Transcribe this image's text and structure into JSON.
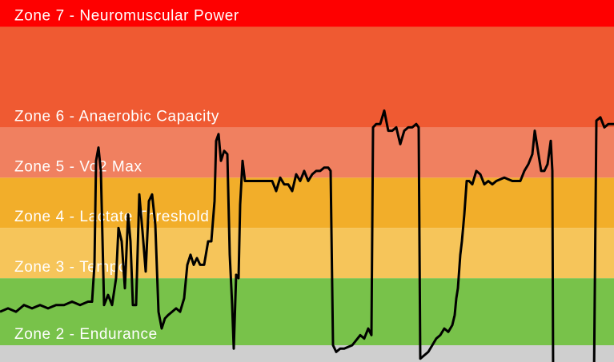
{
  "chart_data": {
    "type": "line",
    "zones": [
      {
        "name": null,
        "color": "#cfcfcf",
        "from": 50,
        "to": 55
      },
      {
        "name": "Zone 2 - Endurance",
        "color": "#78c24a",
        "from": 55,
        "to": 75
      },
      {
        "name": "Zone 3 - Tempo",
        "color": "#f6c55a",
        "from": 75,
        "to": 90
      },
      {
        "name": "Zone 4 - Lactate Threshold",
        "color": "#f2ae2a",
        "from": 90,
        "to": 105
      },
      {
        "name": "Zone 5 - Vo2 Max",
        "color": "#f08060",
        "from": 105,
        "to": 120
      },
      {
        "name": "Zone 6 - Anaerobic Capacity",
        "color": "#ef5a32",
        "from": 120,
        "to": 150
      },
      {
        "name": "Zone 7 - Neuromuscular Power",
        "color": "#fe0000",
        "from": 150,
        "to": 158
      }
    ],
    "xlim": [
      0,
      767
    ],
    "ylim": [
      50,
      158
    ],
    "color": "#000000",
    "x": [
      0,
      10,
      20,
      30,
      40,
      50,
      60,
      70,
      80,
      90,
      100,
      110,
      115,
      118,
      120,
      123,
      126,
      130,
      135,
      140,
      145,
      148,
      152,
      156,
      160,
      163,
      166,
      170,
      174,
      178,
      182,
      186,
      190,
      194,
      198,
      202,
      206,
      210,
      215,
      220,
      225,
      230,
      234,
      238,
      242,
      246,
      250,
      255,
      260,
      264,
      268,
      270,
      273,
      276,
      280,
      284,
      287,
      290,
      292,
      295,
      298,
      300,
      303,
      306,
      310,
      320,
      330,
      340,
      345,
      350,
      355,
      360,
      365,
      370,
      375,
      380,
      385,
      390,
      395,
      400,
      405,
      410,
      413,
      416,
      420,
      425,
      430,
      440,
      450,
      455,
      460,
      464,
      466,
      470,
      475,
      480,
      485,
      490,
      495,
      500,
      505,
      510,
      515,
      520,
      523,
      525,
      530,
      535,
      540,
      545,
      550,
      555,
      560,
      565,
      568,
      570,
      572,
      575,
      577,
      580,
      583,
      586,
      590,
      595,
      600,
      605,
      610,
      615,
      620,
      630,
      640,
      645,
      650,
      655,
      660,
      665,
      668,
      672,
      676,
      680,
      684,
      688,
      690,
      691,
      742,
      745,
      750,
      755,
      760,
      767
    ],
    "values": [
      65,
      66,
      65,
      67,
      66,
      67,
      66,
      67,
      67,
      68,
      67,
      68,
      68,
      79,
      110,
      114,
      107,
      67,
      70,
      67,
      75,
      90,
      86,
      72,
      94,
      86,
      67,
      67,
      100,
      89,
      77,
      98,
      100,
      91,
      65,
      60,
      63,
      64,
      65,
      66,
      65,
      69,
      79,
      82,
      79,
      81,
      79,
      79,
      86,
      86,
      98,
      116,
      118,
      110,
      113,
      112,
      82,
      67,
      54,
      76,
      75,
      97,
      110,
      104,
      104,
      104,
      104,
      104,
      101,
      105,
      103,
      103,
      101,
      106,
      104,
      107,
      104,
      106,
      107,
      107,
      108,
      108,
      107,
      55,
      53,
      54,
      54,
      55,
      58,
      57,
      60,
      58,
      120,
      121,
      121,
      125,
      119,
      119,
      120,
      115,
      119,
      120,
      120,
      121,
      120,
      51,
      52,
      53,
      55,
      57,
      58,
      60,
      59,
      61,
      64,
      69,
      72,
      82,
      86,
      94,
      104,
      104,
      103,
      107,
      106,
      103,
      104,
      103,
      104,
      105,
      104,
      104,
      104,
      107,
      109,
      112,
      119,
      113,
      107,
      107,
      109,
      116,
      107,
      45,
      45,
      122,
      123,
      120,
      121,
      121
    ]
  }
}
